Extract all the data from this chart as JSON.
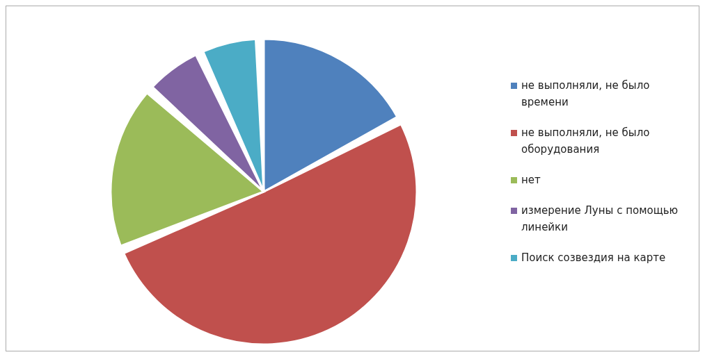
{
  "chart_data": {
    "type": "pie",
    "categories": [
      "не выполняли, не было времени",
      "не выполняли, не было оборудования",
      "нет",
      "измерение  Луны с помощью линейки",
      "Поиск созвездия на карте"
    ],
    "values": [
      17.6,
      52.9,
      17.7,
      5.9,
      5.9
    ],
    "colors": [
      "#4f81bd",
      "#c0504d",
      "#9bbb59",
      "#8064a2",
      "#4bacc6"
    ],
    "legend": "right"
  }
}
